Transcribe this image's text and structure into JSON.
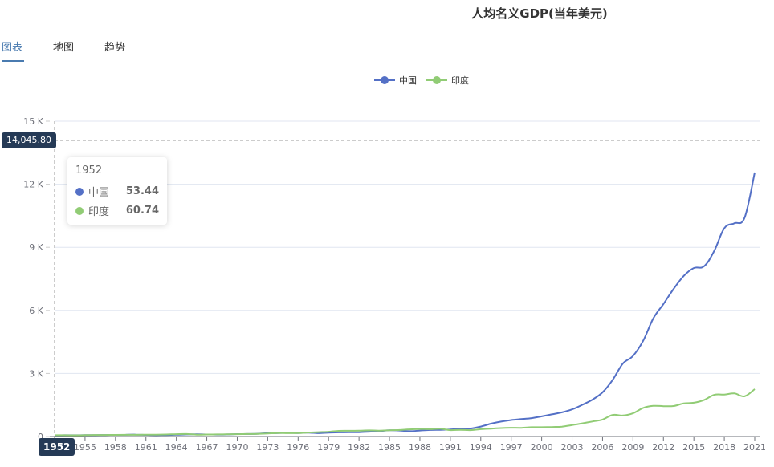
{
  "title": "人均名义GDP(当年美元)",
  "tabs": [
    {
      "label": "图表",
      "active": true
    },
    {
      "label": "地图",
      "active": false
    },
    {
      "label": "趋势",
      "active": false
    }
  ],
  "legend": [
    {
      "name": "中国",
      "color": "#5470c6"
    },
    {
      "name": "印度",
      "color": "#91cc75"
    }
  ],
  "tooltip": {
    "year": "1952",
    "rows": [
      {
        "name": "中国",
        "value": "53.44",
        "color": "#5470c6"
      },
      {
        "name": "印度",
        "value": "60.74",
        "color": "#91cc75"
      }
    ]
  },
  "axis_pointer": {
    "y_label": "14,045.80",
    "x_label": "1952"
  },
  "chart_data": {
    "type": "line",
    "title": "人均名义GDP(当年美元)",
    "xlabel": "",
    "ylabel": "",
    "ylim": [
      0,
      15000
    ],
    "y_ticks": [
      "0",
      "3 K",
      "6 K",
      "9 K",
      "12 K",
      "15 K"
    ],
    "x_tick_labels": [
      "1952",
      "1955",
      "1958",
      "1961",
      "1964",
      "1967",
      "1970",
      "1973",
      "1976",
      "1979",
      "1982",
      "1985",
      "1988",
      "1991",
      "1994",
      "1997",
      "2000",
      "2003",
      "2006",
      "2009",
      "2012",
      "2015",
      "2018",
      "2021"
    ],
    "legend_position": "top",
    "grid": true,
    "x": [
      1952,
      1953,
      1954,
      1955,
      1956,
      1957,
      1958,
      1959,
      1960,
      1961,
      1962,
      1963,
      1964,
      1965,
      1966,
      1967,
      1968,
      1969,
      1970,
      1971,
      1972,
      1973,
      1974,
      1975,
      1976,
      1977,
      1978,
      1979,
      1980,
      1981,
      1982,
      1983,
      1984,
      1985,
      1986,
      1987,
      1988,
      1989,
      1990,
      1991,
      1992,
      1993,
      1994,
      1995,
      1996,
      1997,
      1998,
      1999,
      2000,
      2001,
      2002,
      2003,
      2004,
      2005,
      2006,
      2007,
      2008,
      2009,
      2010,
      2011,
      2012,
      2013,
      2014,
      2015,
      2016,
      2017,
      2018,
      2019,
      2020,
      2021
    ],
    "series": [
      {
        "name": "中国",
        "color": "#5470c6",
        "values": [
          53.44,
          60,
          62,
          65,
          70,
          72,
          78,
          82,
          89,
          76,
          70,
          74,
          85,
          98,
          104,
          97,
          91,
          100,
          113,
          118,
          131,
          157,
          160,
          178,
          165,
          185,
          156,
          184,
          195,
          197,
          203,
          225,
          251,
          294,
          282,
          252,
          283,
          311,
          318,
          333,
          366,
          377,
          473,
          609,
          709,
          782,
          829,
          873,
          959,
          1053,
          1149,
          1289,
          1509,
          1753,
          2099,
          2694,
          3468,
          3832,
          4550,
          5614,
          6301,
          7020,
          7636,
          8016,
          8094,
          8817,
          9905,
          10144,
          10409,
          12556
        ]
      },
      {
        "name": "印度",
        "color": "#91cc75",
        "values": [
          60.74,
          62,
          58,
          64,
          72,
          73,
          78,
          80,
          82,
          85,
          88,
          96,
          110,
          118,
          89,
          95,
          99,
          106,
          112,
          118,
          122,
          143,
          163,
          158,
          161,
          186,
          206,
          224,
          266,
          271,
          274,
          291,
          277,
          296,
          310,
          340,
          354,
          346,
          368,
          303,
          317,
          301,
          346,
          374,
          400,
          415,
          413,
          442,
          443,
          452,
          471,
          546,
          627,
          715,
          807,
          1028,
          999,
          1102,
          1358,
          1458,
          1444,
          1450,
          1574,
          1606,
          1733,
          1981,
          1997,
          2050,
          1913,
          2257
        ]
      }
    ]
  }
}
